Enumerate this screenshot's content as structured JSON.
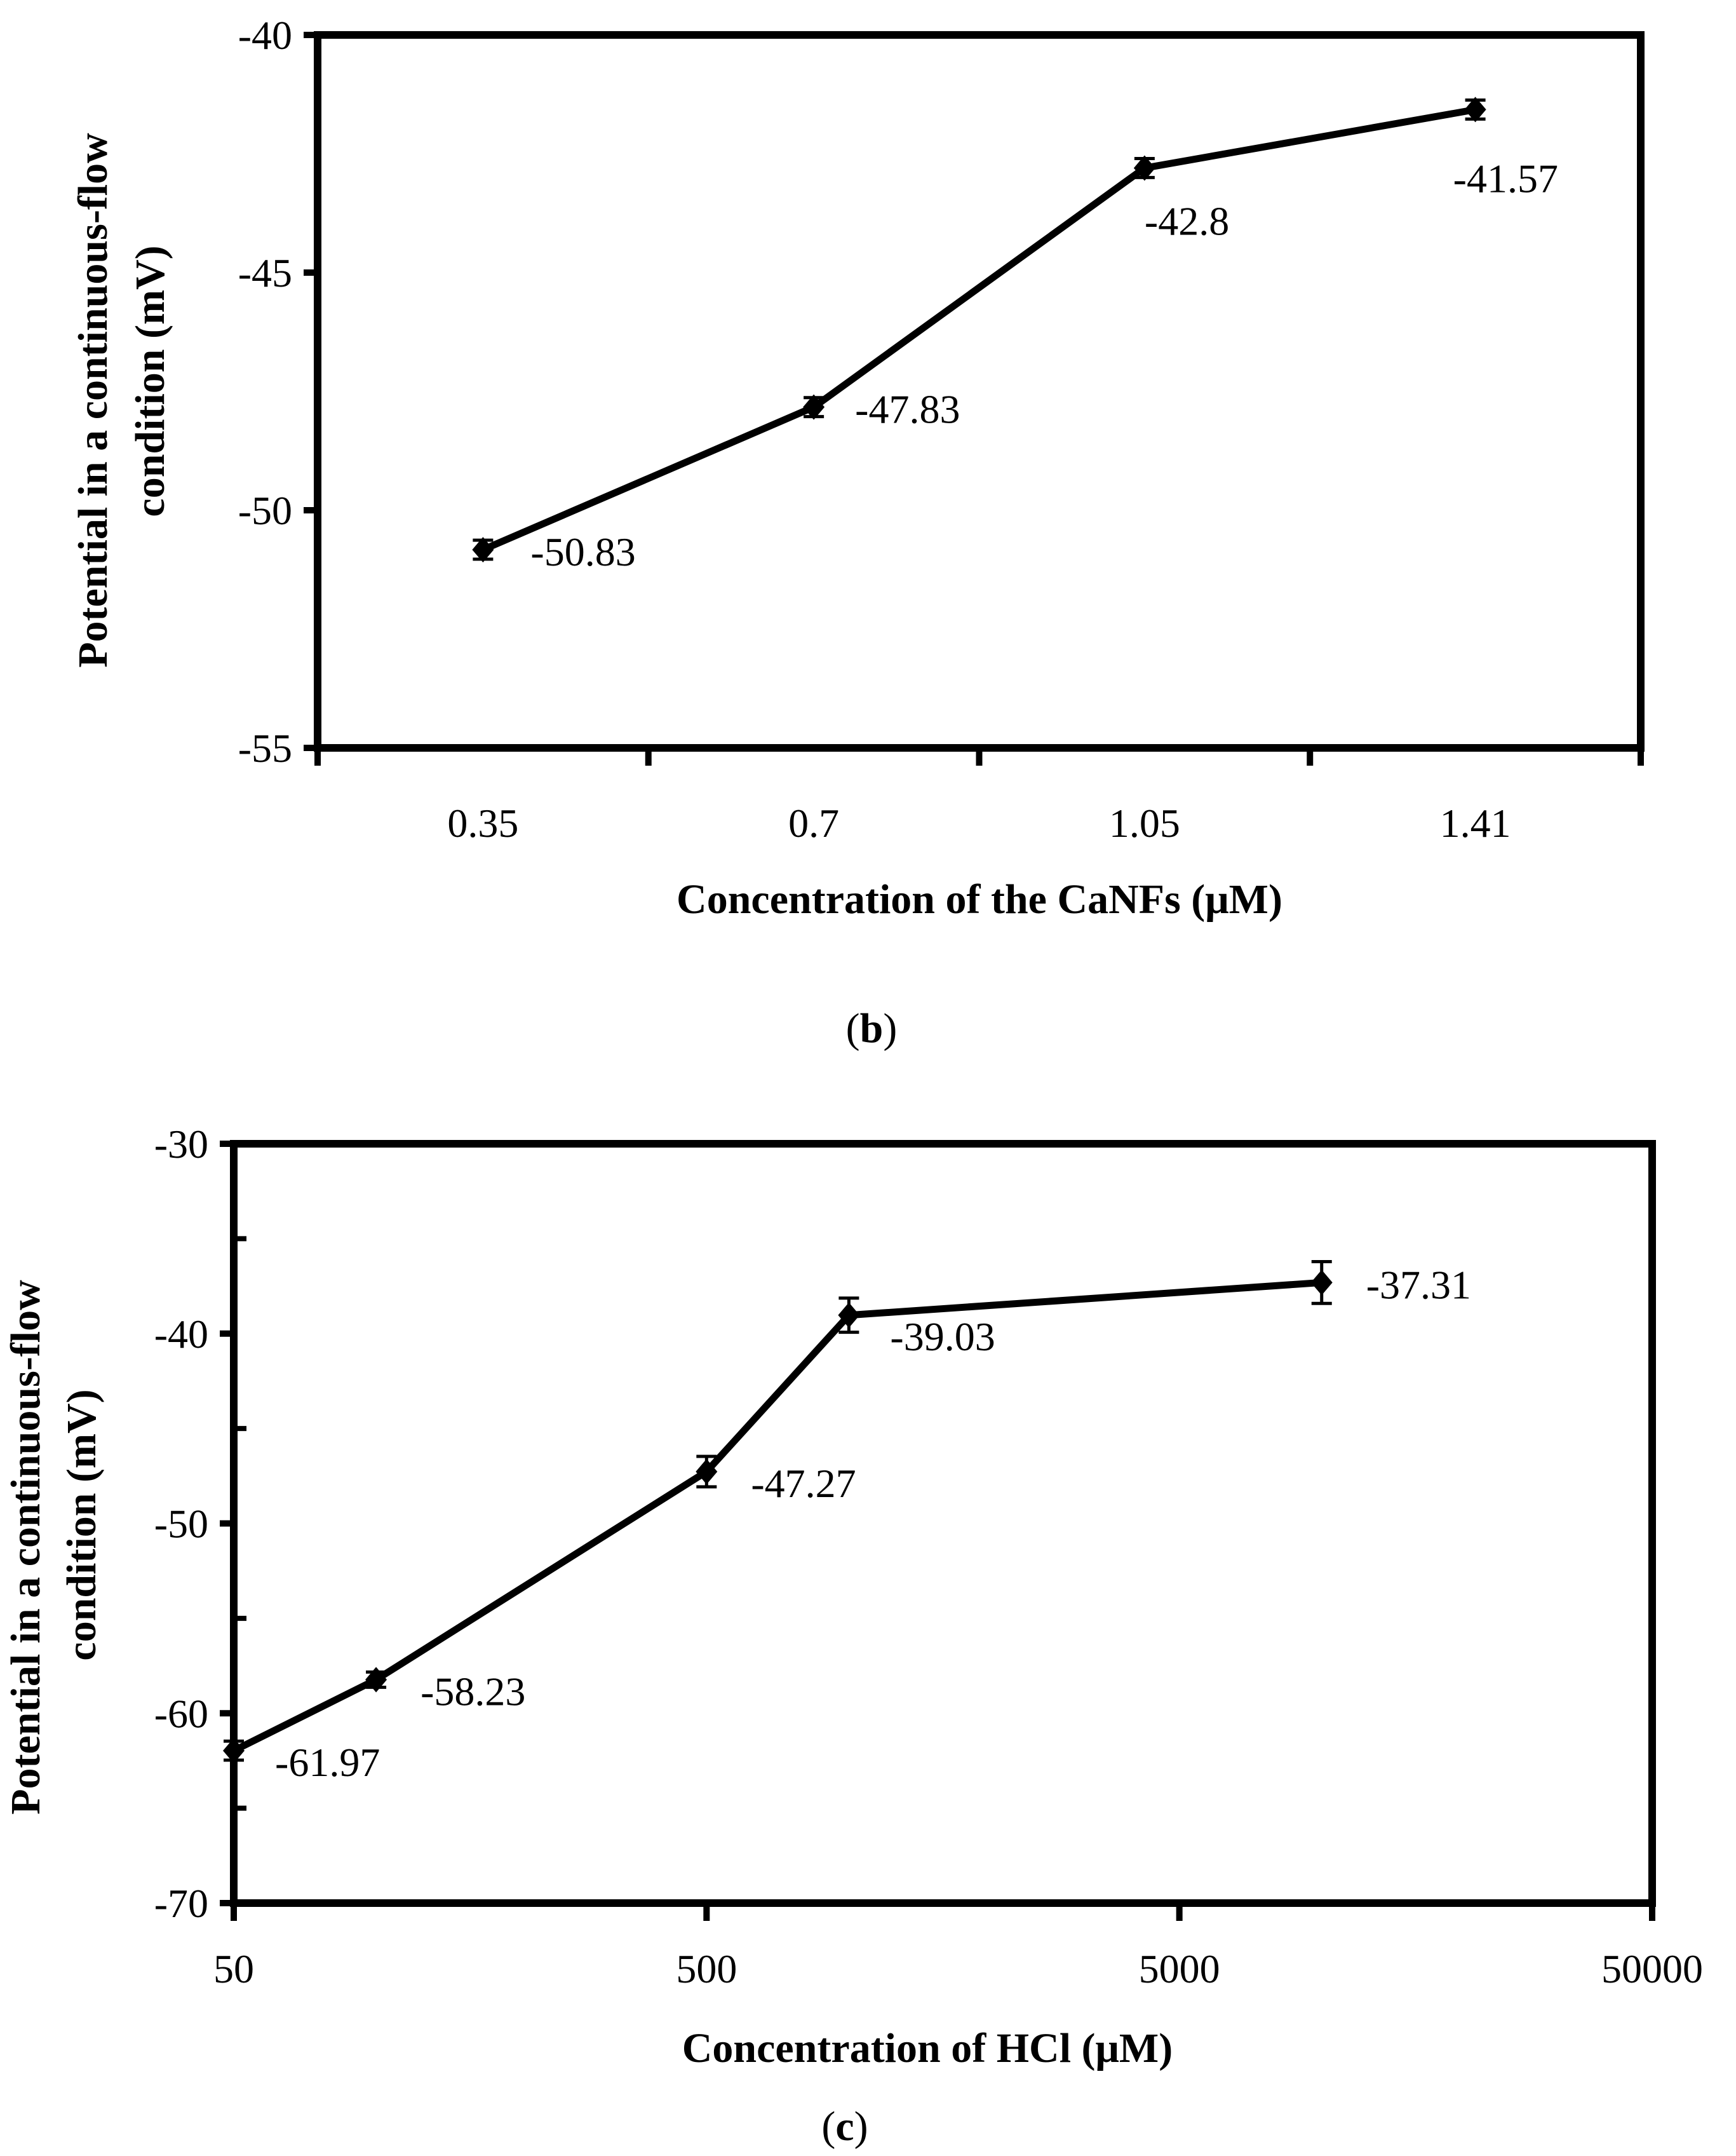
{
  "chart_data": [
    {
      "id": "b",
      "type": "line",
      "panel_label": "b",
      "xlabel": "Concentration of the CaNFs (μM)",
      "ylabel_line1": "Potential in a continuous-flow",
      "ylabel_line2": "condition (mV)",
      "x_scale": "category",
      "categories": [
        "0.35",
        "0.7",
        "1.05",
        "1.41"
      ],
      "series": [
        {
          "name": "potential",
          "values": [
            -50.83,
            -47.83,
            -42.8,
            -41.57
          ],
          "errors": [
            0.2,
            0.2,
            0.2,
            0.2
          ]
        }
      ],
      "data_labels": [
        "-50.83",
        "-47.83",
        "-42.8",
        "-41.57"
      ],
      "ylim": [
        -55,
        -40
      ],
      "yticks": [
        -55,
        -50,
        -45,
        -40
      ],
      "ytick_labels": [
        "-55",
        "-50",
        "-45",
        "-40"
      ],
      "color": "#000000"
    },
    {
      "id": "c",
      "type": "line",
      "panel_label": "c",
      "xlabel": "Concentration of HCl (μM)",
      "ylabel_line1": "Potential in a continuous-flow",
      "ylabel_line2": "condition (mV)",
      "x_scale": "log",
      "x": [
        50,
        100,
        500,
        1000,
        10000
      ],
      "xlim": [
        50,
        50000
      ],
      "xticks": [
        50,
        500,
        5000,
        50000
      ],
      "xtick_labels": [
        "50",
        "500",
        "5000",
        "50000"
      ],
      "series": [
        {
          "name": "potential",
          "values": [
            -61.97,
            -58.23,
            -47.27,
            -39.03,
            -37.31
          ],
          "errors": [
            0.5,
            0.4,
            0.8,
            0.9,
            1.1
          ]
        }
      ],
      "data_labels": [
        "-61.97",
        "-58.23",
        "-47.27",
        "-39.03",
        "-37.31"
      ],
      "ylim": [
        -70,
        -30
      ],
      "yticks": [
        -70,
        -60,
        -50,
        -40,
        -30
      ],
      "ytick_labels": [
        "-70",
        "-60",
        "-50",
        "-40",
        "-30"
      ],
      "color": "#000000"
    }
  ]
}
